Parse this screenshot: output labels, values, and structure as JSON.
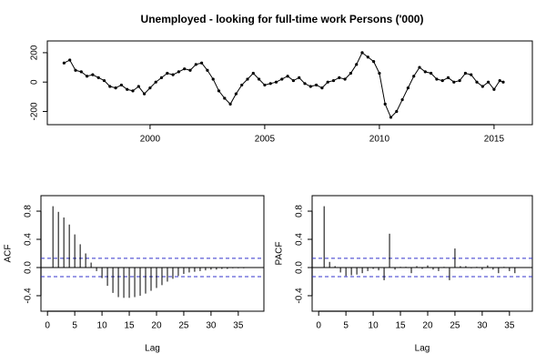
{
  "chart_data": [
    {
      "type": "line",
      "title": "Unemployed - looking for full-time work Persons ('000)",
      "color": "#000000",
      "x": [
        1996.25,
        1996.5,
        1996.75,
        1997,
        1997.25,
        1997.5,
        1997.75,
        1998,
        1998.25,
        1998.5,
        1998.75,
        1999,
        1999.25,
        1999.5,
        1999.75,
        2000,
        2000.25,
        2000.5,
        2000.75,
        2001,
        2001.25,
        2001.5,
        2001.75,
        2002,
        2002.25,
        2002.5,
        2002.75,
        2003,
        2003.25,
        2003.5,
        2003.75,
        2004,
        2004.25,
        2004.5,
        2004.75,
        2005,
        2005.25,
        2005.5,
        2005.75,
        2006,
        2006.25,
        2006.5,
        2006.75,
        2007,
        2007.25,
        2007.5,
        2007.75,
        2008,
        2008.25,
        2008.5,
        2008.75,
        2009,
        2009.25,
        2009.5,
        2009.75,
        2010,
        2010.25,
        2010.5,
        2010.75,
        2011,
        2011.25,
        2011.5,
        2011.75,
        2012,
        2012.25,
        2012.5,
        2012.75,
        2013,
        2013.25,
        2013.5,
        2013.75,
        2014,
        2014.25,
        2014.5,
        2014.75,
        2015,
        2015.25,
        2015.4
      ],
      "values": [
        130,
        150,
        80,
        70,
        40,
        50,
        30,
        10,
        -30,
        -40,
        -20,
        -50,
        -60,
        -30,
        -80,
        -40,
        0,
        30,
        60,
        50,
        70,
        90,
        80,
        120,
        130,
        80,
        20,
        -60,
        -110,
        -150,
        -80,
        -20,
        20,
        60,
        20,
        -20,
        -10,
        0,
        20,
        40,
        10,
        30,
        -10,
        -30,
        -20,
        -40,
        0,
        10,
        30,
        20,
        60,
        120,
        200,
        170,
        140,
        60,
        -150,
        -240,
        -200,
        -120,
        -40,
        40,
        100,
        70,
        60,
        20,
        10,
        30,
        0,
        10,
        60,
        50,
        0,
        -30,
        0,
        -50,
        10,
        0
      ],
      "xlim": [
        1995.52,
        2016.67
      ],
      "xticks": [
        2000,
        2005,
        2010,
        2015
      ],
      "ylim": [
        -290,
        280
      ],
      "yticks": [
        -200,
        0,
        200
      ]
    },
    {
      "type": "bar",
      "xlabel": "Lag",
      "ylabel": "ACF",
      "color": "#000000",
      "ci": [
        -0.13,
        0.13
      ],
      "ci_color": "#3333cc",
      "x": [
        1,
        2,
        3,
        4,
        5,
        6,
        7,
        8,
        9,
        10,
        11,
        12,
        13,
        14,
        15,
        16,
        17,
        18,
        19,
        20,
        21,
        22,
        23,
        24,
        25,
        26,
        27,
        28,
        29,
        30,
        31,
        32,
        33,
        34,
        35,
        36
      ],
      "values": [
        0.87,
        0.79,
        0.71,
        0.61,
        0.47,
        0.33,
        0.2,
        0.07,
        -0.05,
        -0.15,
        -0.26,
        -0.36,
        -0.42,
        -0.43,
        -0.43,
        -0.42,
        -0.4,
        -0.37,
        -0.33,
        -0.29,
        -0.25,
        -0.2,
        -0.16,
        -0.12,
        -0.09,
        -0.07,
        -0.06,
        -0.05,
        -0.04,
        -0.03,
        -0.03,
        -0.02,
        -0.02,
        -0.01,
        -0.01,
        -0.01
      ],
      "xlim": [
        -1.2,
        39.7
      ],
      "xticks": [
        0,
        5,
        10,
        15,
        20,
        25,
        30,
        35
      ],
      "ylim": [
        -0.62,
        1.02
      ],
      "yticks": [
        -0.4,
        {
          "value": 0,
          "label": "0.0"
        },
        0.4,
        0.8
      ]
    },
    {
      "type": "bar",
      "xlabel": "Lag",
      "ylabel": "PACF",
      "color": "#000000",
      "ci": [
        -0.13,
        0.13
      ],
      "ci_color": "#3333cc",
      "x": [
        1,
        2,
        3,
        4,
        5,
        6,
        7,
        8,
        9,
        10,
        11,
        12,
        13,
        14,
        15,
        16,
        17,
        18,
        19,
        20,
        21,
        22,
        23,
        24,
        25,
        26,
        27,
        28,
        29,
        30,
        31,
        32,
        33,
        34,
        35,
        36
      ],
      "values": [
        0.87,
        0.08,
        0.02,
        -0.07,
        -0.12,
        -0.11,
        -0.1,
        -0.08,
        -0.05,
        -0.02,
        -0.04,
        -0.18,
        0.48,
        -0.03,
        0.01,
        0.01,
        -0.08,
        0.02,
        -0.02,
        0.03,
        -0.03,
        -0.05,
        0.01,
        -0.18,
        0.27,
        0.02,
        0.02,
        -0.01,
        0.01,
        -0.03,
        0.03,
        -0.03,
        -0.08,
        0.01,
        -0.05,
        -0.08
      ],
      "xlim": [
        -1.2,
        39.2
      ],
      "xticks": [
        0,
        5,
        10,
        15,
        20,
        25,
        30,
        35
      ],
      "ylim": [
        -0.62,
        1.02
      ],
      "yticks": [
        -0.4,
        {
          "value": 0,
          "label": "0.0"
        },
        0.4,
        0.8
      ]
    }
  ]
}
